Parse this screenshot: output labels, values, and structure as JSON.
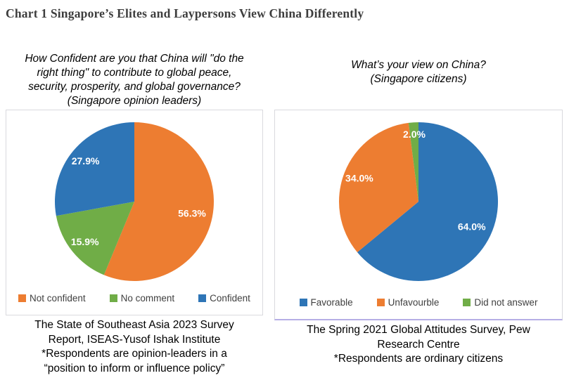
{
  "page_title": "Chart 1 Singapore’s Elites and Laypersons View China Differently",
  "styles": {
    "title_color": "#3D3D3D",
    "legend_text_color": "#404040",
    "box_border_color": "#D9D9DE",
    "right_box_bottom_border_color": "#B6AEE6",
    "pie_label_text_color": "#FFFFFF"
  },
  "chart_data": [
    {
      "type": "pie",
      "title": "How Confident are you that China will \"do the right thing\" to contribute to global peace, security, prosperity, and global governance? (Singapore opinion leaders)",
      "title_lines": [
        "How Confident are you that China will \"do the",
        "right thing\" to contribute to global peace,",
        "security, prosperity, and global governance?",
        "(Singapore opinion leaders)"
      ],
      "categories": [
        "Not confident",
        "No comment",
        "Confident"
      ],
      "values": [
        56.3,
        15.9,
        27.9
      ],
      "labels": [
        "56.3%",
        "15.9%",
        "27.9%"
      ],
      "colors": [
        "#ED7D31",
        "#70AD47",
        "#2E75B6"
      ],
      "start_angle_deg": 0,
      "direction": "clockwise",
      "legend_position": "bottom",
      "source_lines": [
        "The State of Southeast Asia 2023 Survey",
        "Report, ISEAS-Yusof Ishak Institute",
        "*Respondents are opinion-leaders in a",
        "“position to inform or influence policy”"
      ]
    },
    {
      "type": "pie",
      "title": "What’s your view on China? (Singapore citizens)",
      "title_lines": [
        "What’s your view on China?",
        "(Singapore citizens)"
      ],
      "categories": [
        "Favorable",
        "Unfavourble",
        "Did not answer"
      ],
      "values": [
        64.0,
        34.0,
        2.0
      ],
      "labels": [
        "64.0%",
        "34.0%",
        "2.0%"
      ],
      "colors": [
        "#2E75B6",
        "#ED7D31",
        "#70AD47"
      ],
      "start_angle_deg": 0,
      "direction": "clockwise",
      "legend_position": "bottom",
      "source_lines": [
        "The Spring 2021 Global Attitudes Survey, Pew",
        "Research Centre",
        "*Respondents are ordinary citizens"
      ]
    }
  ]
}
